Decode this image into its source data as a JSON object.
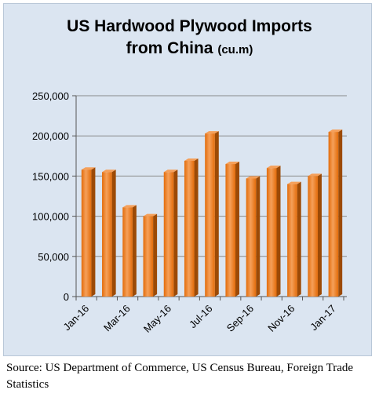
{
  "chart_data": {
    "type": "bar",
    "title": "US Hardwood Plywood Imports",
    "title_line2": "from China",
    "title_unit": "(cu.m)",
    "xlabel": "",
    "ylabel": "",
    "categories": [
      "Jan-16",
      "Feb-16",
      "Mar-16",
      "Apr-16",
      "May-16",
      "Jun-16",
      "Jul-16",
      "Aug-16",
      "Sep-16",
      "Oct-16",
      "Nov-16",
      "Dec-16",
      "Jan-17"
    ],
    "x_tick_labels": [
      "Jan-16",
      "",
      "Mar-16",
      "",
      "May-16",
      "",
      "Jul-16",
      "",
      "Sep-16",
      "",
      "Nov-16",
      "",
      "Jan-17"
    ],
    "values": [
      158000,
      155000,
      111000,
      100000,
      155000,
      169000,
      203000,
      165000,
      147000,
      160000,
      140000,
      150000,
      205000
    ],
    "ylim": [
      0,
      250000
    ],
    "y_ticks": [
      0,
      50000,
      100000,
      150000,
      200000,
      250000
    ],
    "y_tick_labels": [
      "0",
      "50,000",
      "100,000",
      "150,000",
      "200,000",
      "250,000"
    ],
    "grid": true,
    "legend": "none",
    "bar_color": "#e36c0a",
    "bar_highlight": "#f5a05a",
    "bar_shadow": "#9c4a06"
  },
  "source_note": "Source: US Department of Commerce, US Census Bureau, Foreign Trade Statistics"
}
